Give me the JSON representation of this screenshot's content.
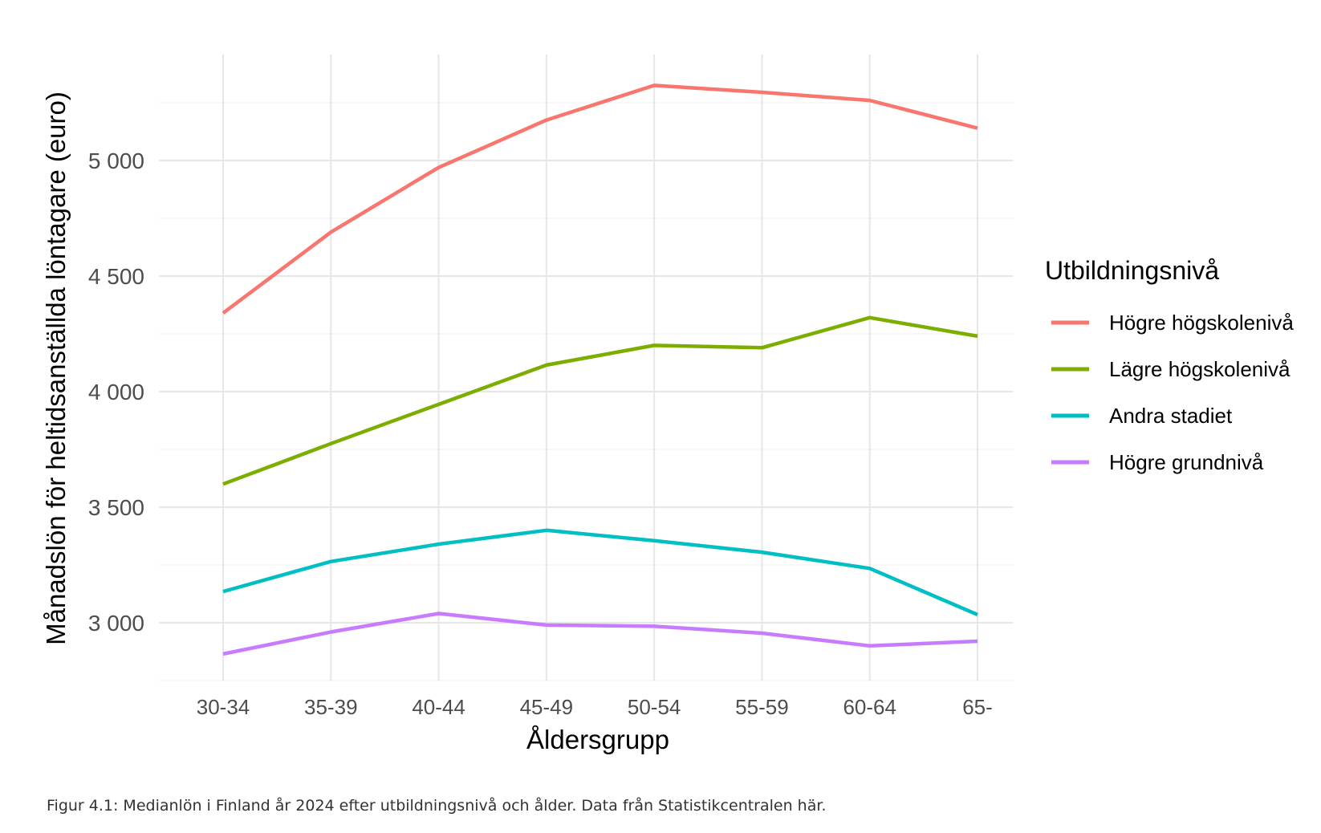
{
  "chart_data": {
    "type": "line",
    "xlabel": "Åldersgrupp",
    "ylabel": "Månadslön för heltidsanställda löntagare (euro)",
    "categories": [
      "30-34",
      "35-39",
      "40-44",
      "45-49",
      "50-54",
      "55-59",
      "60-64",
      "65-"
    ],
    "ylim": [
      2750,
      5450
    ],
    "yticks": [
      3000,
      3500,
      4000,
      4500,
      5000
    ],
    "ytick_labels": [
      "3 000",
      "3 500",
      "4 000",
      "4 500",
      "5 000"
    ],
    "grid": true,
    "legend": {
      "title": "Utbildningsnivå",
      "position": "right"
    },
    "series": [
      {
        "name": "Högre högskolenivå",
        "color": "#F8766D",
        "values": [
          4340,
          4690,
          4970,
          5175,
          5325,
          5295,
          5260,
          5140
        ]
      },
      {
        "name": "Lägre högskolenivå",
        "color": "#7CAE00",
        "values": [
          3600,
          3775,
          3945,
          4115,
          4200,
          4190,
          4320,
          4240
        ]
      },
      {
        "name": "Andra stadiet",
        "color": "#00BFC4",
        "values": [
          3135,
          3265,
          3340,
          3400,
          3355,
          3305,
          3235,
          3035
        ]
      },
      {
        "name": "Högre grundnivå",
        "color": "#C77CFF",
        "values": [
          2865,
          2960,
          3040,
          2990,
          2985,
          2955,
          2900,
          2920
        ]
      }
    ]
  },
  "caption": "Figur 4.1: Medianlön i Finland år 2024 efter utbildningsnivå och ålder. Data från Statistikcentralen här."
}
